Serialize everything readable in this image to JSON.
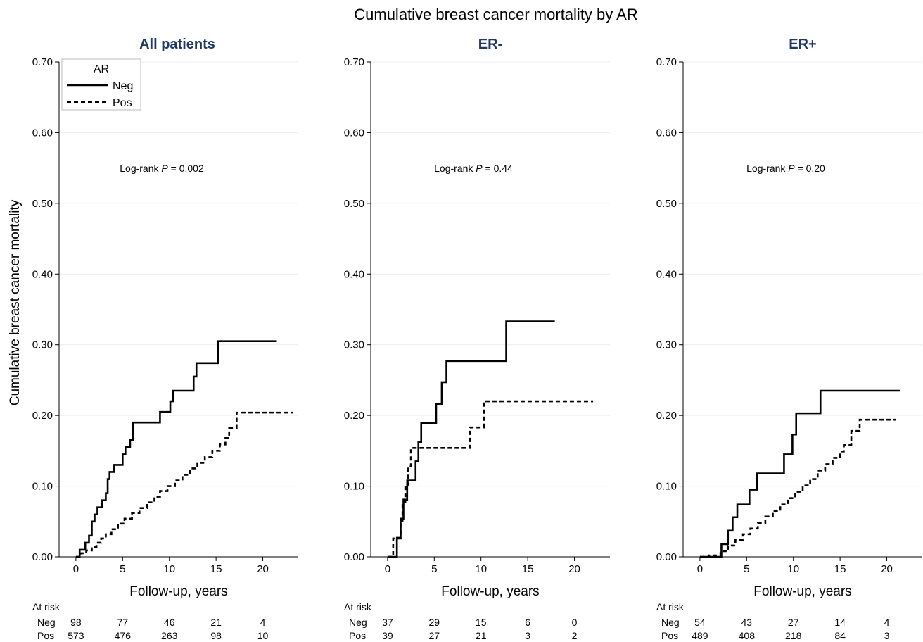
{
  "figure": {
    "title": "Cumulative breast cancer mortality by AR",
    "ylabel": "Cumulative breast cancer mortality",
    "xlabel": "Follow-up, years",
    "at_risk_label": "At risk",
    "row_labels": [
      "Neg",
      "Pos"
    ],
    "legend": {
      "title": "AR",
      "entries": [
        "Neg",
        "Pos"
      ],
      "placement": "top-left of first panel"
    }
  },
  "chart_data": [
    {
      "type": "line",
      "title": "All patients",
      "annotation": {
        "prefix": "Log-rank ",
        "p": "P",
        "suffix": " = 0.002"
      },
      "xlim": [
        -1.8,
        23.8
      ],
      "ylim": [
        0,
        0.7
      ],
      "xticks": [
        0,
        5,
        10,
        15,
        20
      ],
      "yticks": [
        0,
        0.1,
        0.2,
        0.3,
        0.4,
        0.5,
        0.6,
        0.7
      ],
      "grid": true,
      "series": [
        {
          "name": "Neg",
          "style": "solid",
          "x": [
            0,
            0.4,
            1.0,
            1.4,
            1.7,
            2.0,
            2.3,
            2.8,
            3.2,
            3.4,
            3.6,
            4.1,
            5.0,
            5.3,
            5.8,
            6.1,
            9.0,
            10.1,
            10.4,
            12.6,
            12.9,
            15.2,
            21.5
          ],
          "y": [
            0,
            0.01,
            0.02,
            0.03,
            0.05,
            0.06,
            0.07,
            0.08,
            0.09,
            0.11,
            0.12,
            0.13,
            0.145,
            0.155,
            0.165,
            0.19,
            0.205,
            0.22,
            0.235,
            0.255,
            0.274,
            0.305,
            0.305
          ]
        },
        {
          "name": "Pos",
          "style": "dashed",
          "x": [
            0,
            0.5,
            1.1,
            1.7,
            2.2,
            2.7,
            3.2,
            3.8,
            4.5,
            5.2,
            6.0,
            6.8,
            7.6,
            8.4,
            9.0,
            9.8,
            10.6,
            11.4,
            12.2,
            13.0,
            13.8,
            14.6,
            15.4,
            16.0,
            16.4,
            17.2,
            23.2
          ],
          "y": [
            0,
            0.005,
            0.009,
            0.014,
            0.02,
            0.026,
            0.032,
            0.039,
            0.047,
            0.054,
            0.062,
            0.069,
            0.077,
            0.085,
            0.093,
            0.1,
            0.108,
            0.116,
            0.125,
            0.133,
            0.141,
            0.15,
            0.159,
            0.168,
            0.182,
            0.204,
            0.204
          ]
        }
      ],
      "at_risk": {
        "x": [
          0,
          5,
          10,
          15,
          20
        ],
        "Neg": [
          "98",
          "77",
          "46",
          "21",
          "4"
        ],
        "Pos": [
          "573",
          "476",
          "263",
          "98",
          "10"
        ]
      }
    },
    {
      "type": "line",
      "title": "ER-",
      "annotation": {
        "prefix": "Log-rank ",
        "p": "P",
        "suffix": " = 0.44"
      },
      "xlim": [
        -1.8,
        23.8
      ],
      "ylim": [
        0,
        0.7
      ],
      "xticks": [
        0,
        5,
        10,
        15,
        20
      ],
      "yticks": [
        0,
        0.1,
        0.2,
        0.3,
        0.4,
        0.5,
        0.6,
        0.7
      ],
      "grid": true,
      "series": [
        {
          "name": "Neg",
          "style": "solid",
          "x": [
            0,
            1.0,
            1.4,
            1.7,
            2.1,
            3.0,
            3.3,
            3.6,
            5.2,
            5.8,
            6.3,
            12.7,
            17.9
          ],
          "y": [
            0,
            0.027,
            0.054,
            0.081,
            0.108,
            0.135,
            0.162,
            0.189,
            0.216,
            0.247,
            0.277,
            0.333,
            0.333
          ]
        },
        {
          "name": "Pos",
          "style": "dashed",
          "x": [
            0,
            0.6,
            1.4,
            1.6,
            1.9,
            2.2,
            2.5,
            8.8,
            10.3,
            22.0
          ],
          "y": [
            0,
            0.026,
            0.051,
            0.077,
            0.102,
            0.128,
            0.154,
            0.183,
            0.22,
            0.22
          ]
        }
      ],
      "at_risk": {
        "x": [
          0,
          5,
          10,
          15,
          20
        ],
        "Neg": [
          "37",
          "29",
          "15",
          "6",
          "0"
        ],
        "Pos": [
          "39",
          "27",
          "21",
          "3",
          "2"
        ]
      }
    },
    {
      "type": "line",
      "title": "ER+",
      "annotation": {
        "prefix": "Log-rank ",
        "p": "P",
        "suffix": " = 0.20"
      },
      "xlim": [
        -1.8,
        23.8
      ],
      "ylim": [
        0,
        0.7
      ],
      "xticks": [
        0,
        5,
        10,
        15,
        20
      ],
      "yticks": [
        0,
        0.1,
        0.2,
        0.3,
        0.4,
        0.5,
        0.6,
        0.7
      ],
      "grid": true,
      "series": [
        {
          "name": "Neg",
          "style": "solid",
          "x": [
            0,
            2.3,
            3.0,
            3.5,
            4.0,
            5.3,
            6.1,
            9.0,
            9.9,
            10.3,
            12.9,
            21.4
          ],
          "y": [
            0,
            0.018,
            0.037,
            0.056,
            0.074,
            0.095,
            0.118,
            0.145,
            0.173,
            0.203,
            0.235,
            0.235
          ]
        },
        {
          "name": "Pos",
          "style": "dashed",
          "x": [
            0,
            1.0,
            2.2,
            3.0,
            3.8,
            4.6,
            5.4,
            6.2,
            7.0,
            7.8,
            8.6,
            9.4,
            10.2,
            11.0,
            11.8,
            12.6,
            13.4,
            14.2,
            15.0,
            15.4,
            16.2,
            17.1,
            21.0
          ],
          "y": [
            0,
            0.002,
            0.008,
            0.016,
            0.024,
            0.032,
            0.04,
            0.048,
            0.057,
            0.065,
            0.074,
            0.083,
            0.092,
            0.101,
            0.11,
            0.122,
            0.131,
            0.14,
            0.149,
            0.158,
            0.178,
            0.194,
            0.194
          ]
        }
      ],
      "at_risk": {
        "x": [
          0,
          5,
          10,
          15,
          20
        ],
        "Neg": [
          "54",
          "43",
          "27",
          "14",
          "4"
        ],
        "Pos": [
          "489",
          "408",
          "218",
          "84",
          "3"
        ]
      }
    }
  ]
}
